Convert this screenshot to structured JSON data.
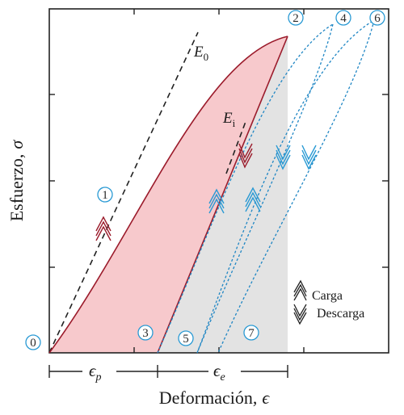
{
  "axes": {
    "y_label": "Esfuerzo,",
    "y_symbol": "σ",
    "x_label": "Deformación,",
    "x_symbol": "ϵ"
  },
  "moduli": {
    "e0_base": "E",
    "e0_sub": "0",
    "ei_base": "E",
    "ei_sub": "i"
  },
  "strains": {
    "plastic_base": "ϵ",
    "plastic_sub": "p",
    "elastic_base": "ϵ",
    "elastic_sub": "e"
  },
  "points": [
    "0",
    "1",
    "2",
    "3",
    "4",
    "5",
    "6",
    "7"
  ],
  "legend": {
    "load": "Carga",
    "unload": "Descarga"
  },
  "colors": {
    "loading_curve": "#9b1b2b",
    "fill_pink": "#f7c9cc",
    "fill_gray": "#e3e3e3",
    "cycle_blue": "#1f86c4",
    "marker_blue": "#2a9ad4",
    "axes": "#222222"
  }
}
